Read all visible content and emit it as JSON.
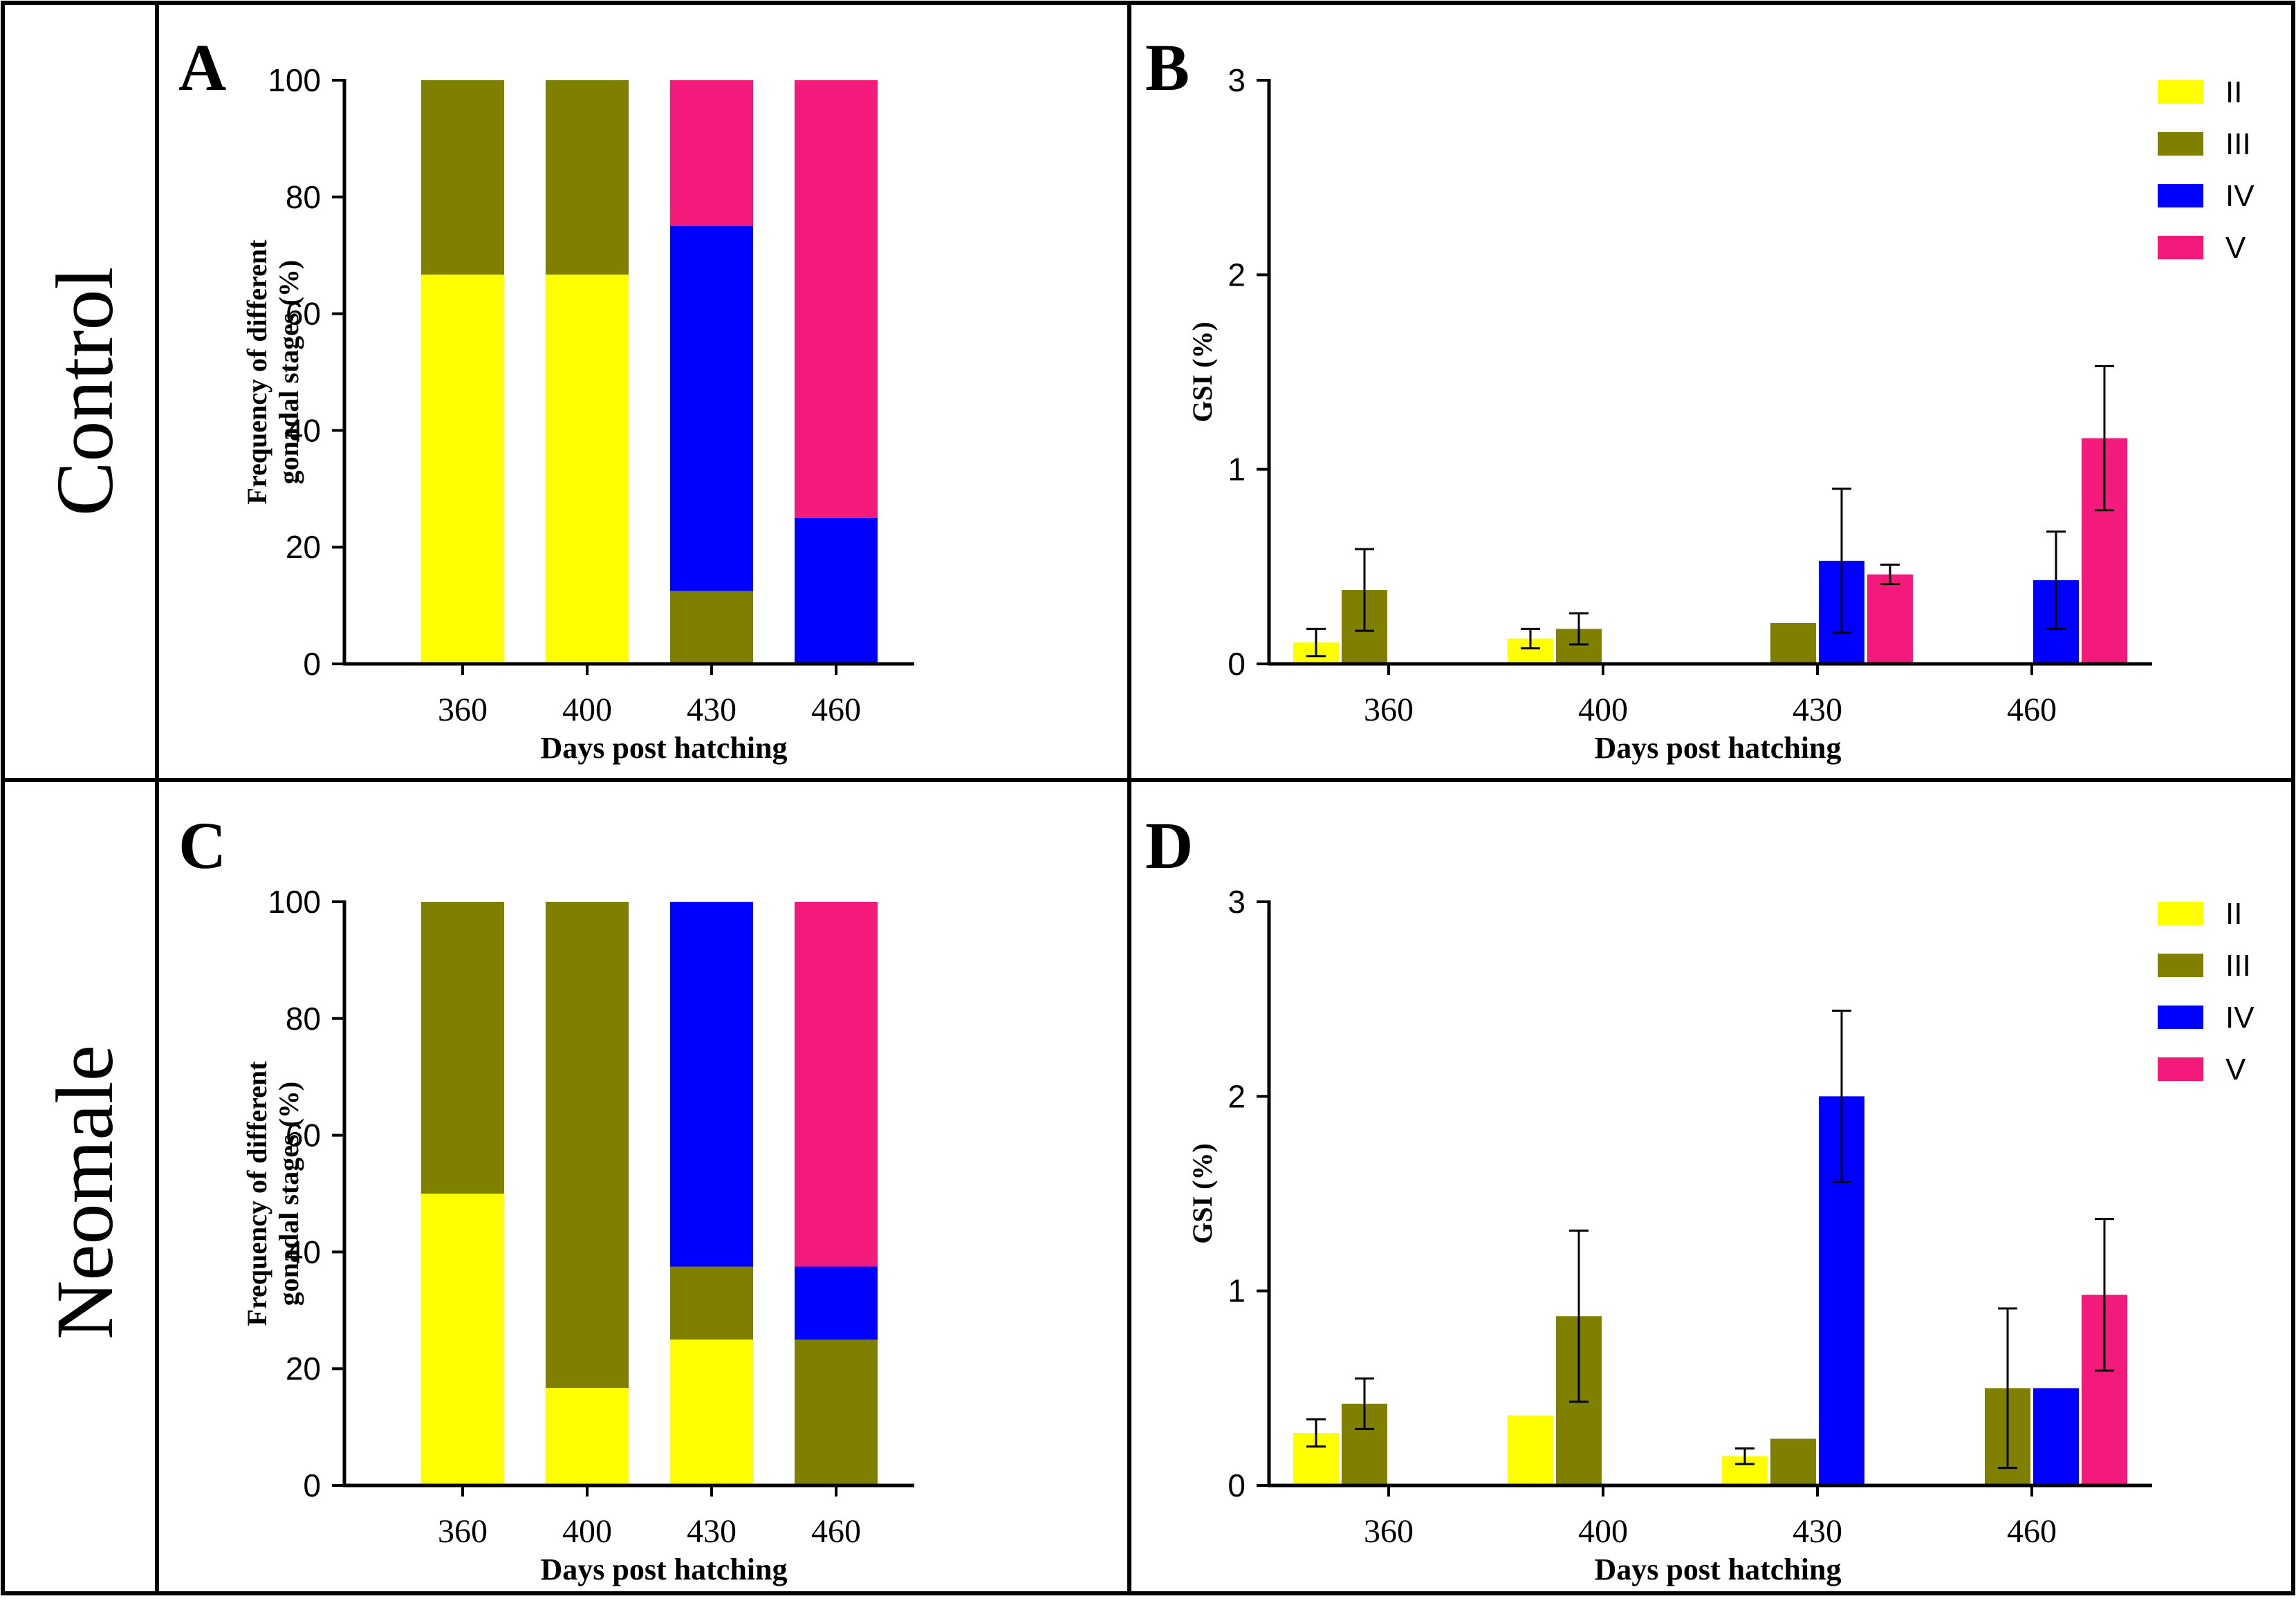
{
  "row_labels": [
    "Control",
    "Neomale"
  ],
  "colors": {
    "II": "#ffff00",
    "III": "#7f7f00",
    "IV": "#0000ff",
    "V": "#f31a7c",
    "frame": "#000000",
    "text": "#000000"
  },
  "chart_data": [
    {
      "panel": "A",
      "type": "bar",
      "stacked": true,
      "xlabel": "Days post hatching",
      "ylabel": "Frequency of different gonadal stages (%)",
      "ylabel_lines": [
        "Frequency of different",
        "gonadal stages (%)"
      ],
      "ylim": [
        0,
        100
      ],
      "yticks": [
        0,
        20,
        40,
        60,
        80,
        100
      ],
      "categories": [
        "360",
        "400",
        "430",
        "460"
      ],
      "series": [
        {
          "name": "II",
          "values": [
            66.7,
            66.7,
            0,
            0
          ]
        },
        {
          "name": "III",
          "values": [
            33.3,
            33.3,
            12.5,
            0
          ]
        },
        {
          "name": "IV",
          "values": [
            0,
            0,
            62.5,
            25
          ]
        },
        {
          "name": "V",
          "values": [
            0,
            0,
            25,
            75
          ]
        }
      ]
    },
    {
      "panel": "B",
      "type": "bar",
      "stacked": false,
      "xlabel": "Days post hatching",
      "ylabel": "GSI (%)",
      "ylim": [
        0,
        3
      ],
      "yticks": [
        0,
        1,
        2,
        3
      ],
      "categories": [
        "360",
        "400",
        "430",
        "460"
      ],
      "legend": [
        "II",
        "III",
        "IV",
        "V"
      ],
      "legend_position": "top-right",
      "series": [
        {
          "name": "II",
          "values": [
            0.11,
            0.13,
            null,
            null
          ],
          "errors": [
            0.07,
            0.05,
            null,
            null
          ]
        },
        {
          "name": "III",
          "values": [
            0.38,
            0.18,
            0.21,
            null
          ],
          "errors": [
            0.21,
            0.08,
            0,
            null
          ]
        },
        {
          "name": "IV",
          "values": [
            null,
            null,
            0.53,
            0.43
          ],
          "errors": [
            null,
            null,
            0.37,
            0.25
          ]
        },
        {
          "name": "V",
          "values": [
            null,
            null,
            0.46,
            1.16
          ],
          "errors": [
            null,
            null,
            0.05,
            0.37
          ]
        }
      ]
    },
    {
      "panel": "C",
      "type": "bar",
      "stacked": true,
      "xlabel": "Days post hatching",
      "ylabel": "Frequency of different gonadal stages (%)",
      "ylabel_lines": [
        "Frequency of different",
        "gonadal stages (%)"
      ],
      "ylim": [
        0,
        100
      ],
      "yticks": [
        0,
        20,
        40,
        60,
        80,
        100
      ],
      "categories": [
        "360",
        "400",
        "430",
        "460"
      ],
      "series": [
        {
          "name": "II",
          "values": [
            50,
            16.7,
            25,
            0
          ]
        },
        {
          "name": "III",
          "values": [
            50,
            83.3,
            12.5,
            25
          ]
        },
        {
          "name": "IV",
          "values": [
            0,
            0,
            62.5,
            12.5
          ]
        },
        {
          "name": "V",
          "values": [
            0,
            0,
            0,
            62.5
          ]
        }
      ]
    },
    {
      "panel": "D",
      "type": "bar",
      "stacked": false,
      "xlabel": "Days post hatching",
      "ylabel": "GSI (%)",
      "ylim": [
        0,
        3
      ],
      "yticks": [
        0,
        1,
        2,
        3
      ],
      "categories": [
        "360",
        "400",
        "430",
        "460"
      ],
      "legend": [
        "II",
        "III",
        "IV",
        "V"
      ],
      "legend_position": "top-right",
      "series": [
        {
          "name": "II",
          "values": [
            0.27,
            0.36,
            0.15,
            null
          ],
          "errors": [
            0.07,
            0,
            0.04,
            null
          ]
        },
        {
          "name": "III",
          "values": [
            0.42,
            0.87,
            0.24,
            0.5
          ],
          "errors": [
            0.13,
            0.44,
            0,
            0.41
          ]
        },
        {
          "name": "IV",
          "values": [
            null,
            null,
            2.0,
            0.5
          ],
          "errors": [
            null,
            null,
            0.44,
            0
          ]
        },
        {
          "name": "V",
          "values": [
            null,
            null,
            null,
            0.98
          ],
          "errors": [
            null,
            null,
            null,
            0.39
          ]
        }
      ]
    }
  ]
}
